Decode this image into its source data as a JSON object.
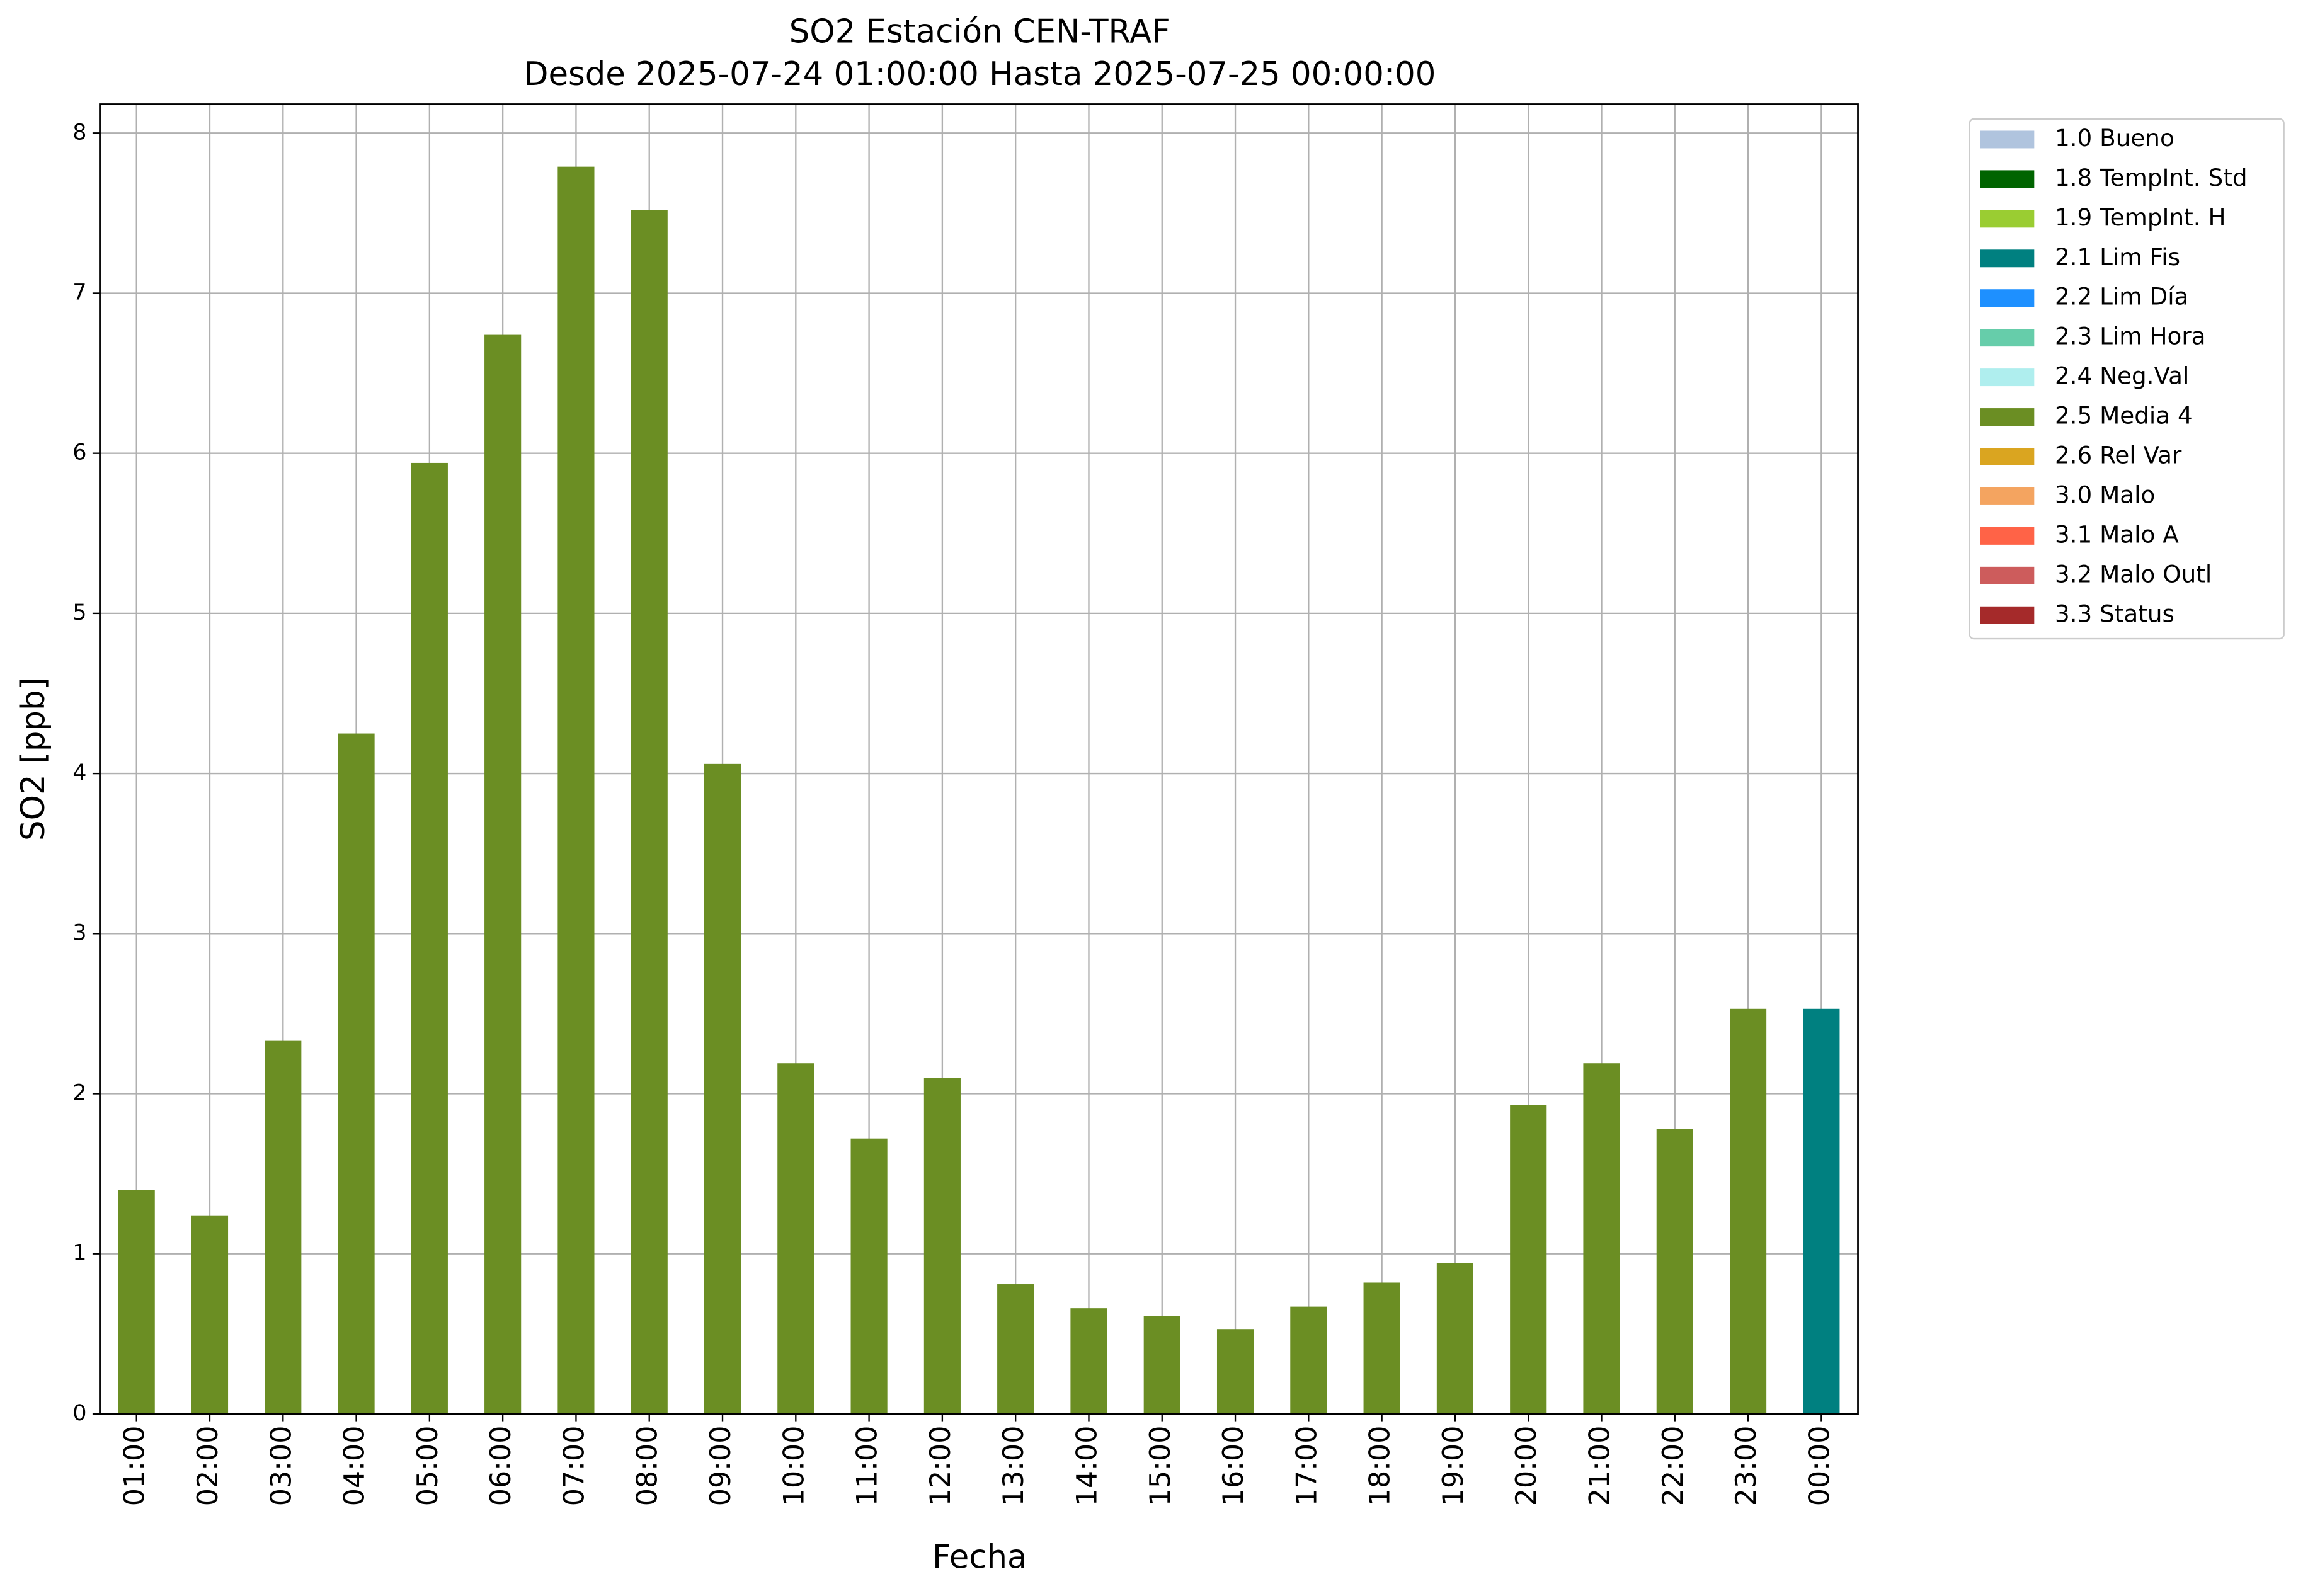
{
  "chart_data": {
    "type": "bar",
    "title": "SO2 Estación CEN-TRAF",
    "subtitle": "Desde 2025-07-24 01:00:00 Hasta 2025-07-25 00:00:00",
    "x_label": "Fecha",
    "y_label": "SO2 [ppb]",
    "categories": [
      "01:00",
      "02:00",
      "03:00",
      "04:00",
      "05:00",
      "06:00",
      "07:00",
      "08:00",
      "09:00",
      "10:00",
      "11:00",
      "12:00",
      "13:00",
      "14:00",
      "15:00",
      "16:00",
      "17:00",
      "18:00",
      "19:00",
      "20:00",
      "21:00",
      "22:00",
      "23:00",
      "00:00"
    ],
    "ylim": [
      0,
      8.18
    ],
    "yticks": [
      0,
      1,
      2,
      3,
      4,
      5,
      6,
      7,
      8
    ],
    "grid": true,
    "legend": "outside-right",
    "series": [
      {
        "name": "1.0 Bueno",
        "color": "#b0c4de",
        "values": [
          null,
          null,
          null,
          null,
          null,
          null,
          null,
          null,
          null,
          null,
          null,
          null,
          null,
          null,
          null,
          null,
          null,
          null,
          null,
          null,
          null,
          null,
          null,
          null
        ]
      },
      {
        "name": "1.8 TempInt. Std",
        "color": "#006400",
        "values": [
          null,
          null,
          null,
          null,
          null,
          null,
          null,
          null,
          null,
          null,
          null,
          null,
          null,
          null,
          null,
          null,
          null,
          null,
          null,
          null,
          null,
          null,
          null,
          null
        ]
      },
      {
        "name": "1.9 TempInt. H",
        "color": "#9acd32",
        "values": [
          null,
          null,
          null,
          null,
          null,
          null,
          null,
          null,
          null,
          null,
          null,
          null,
          null,
          null,
          null,
          null,
          null,
          null,
          null,
          null,
          null,
          null,
          null,
          null
        ]
      },
      {
        "name": "2.1 Lim Fis",
        "color": "#008080",
        "values": [
          null,
          null,
          null,
          null,
          null,
          null,
          null,
          null,
          null,
          null,
          null,
          null,
          null,
          null,
          null,
          null,
          null,
          null,
          null,
          null,
          null,
          null,
          null,
          2.53
        ]
      },
      {
        "name": "2.2 Lim Día",
        "color": "#1e90ff",
        "values": [
          null,
          null,
          null,
          null,
          null,
          null,
          null,
          null,
          null,
          null,
          null,
          null,
          null,
          null,
          null,
          null,
          null,
          null,
          null,
          null,
          null,
          null,
          null,
          null
        ]
      },
      {
        "name": "2.3 Lim Hora",
        "color": "#66cdaa",
        "values": [
          null,
          null,
          null,
          null,
          null,
          null,
          null,
          null,
          null,
          null,
          null,
          null,
          null,
          null,
          null,
          null,
          null,
          null,
          null,
          null,
          null,
          null,
          null,
          null
        ]
      },
      {
        "name": "2.4 Neg.Val",
        "color": "#afeeee",
        "values": [
          null,
          null,
          null,
          null,
          null,
          null,
          null,
          null,
          null,
          null,
          null,
          null,
          null,
          null,
          null,
          null,
          null,
          null,
          null,
          null,
          null,
          null,
          null,
          null
        ]
      },
      {
        "name": "2.5 Media 4",
        "color": "#6b8e23",
        "values": [
          1.4,
          1.24,
          2.33,
          4.25,
          5.94,
          6.74,
          7.79,
          7.52,
          4.06,
          2.19,
          1.72,
          2.1,
          0.81,
          0.66,
          0.61,
          0.53,
          0.67,
          0.82,
          0.94,
          1.93,
          2.19,
          1.78,
          2.53,
          null
        ]
      },
      {
        "name": "2.6 Rel Var",
        "color": "#daa520",
        "values": [
          null,
          null,
          null,
          null,
          null,
          null,
          null,
          null,
          null,
          null,
          null,
          null,
          null,
          null,
          null,
          null,
          null,
          null,
          null,
          null,
          null,
          null,
          null,
          null
        ]
      },
      {
        "name": "3.0 Malo",
        "color": "#f4a460",
        "values": [
          null,
          null,
          null,
          null,
          null,
          null,
          null,
          null,
          null,
          null,
          null,
          null,
          null,
          null,
          null,
          null,
          null,
          null,
          null,
          null,
          null,
          null,
          null,
          null
        ]
      },
      {
        "name": "3.1 Malo A",
        "color": "#ff6347",
        "values": [
          null,
          null,
          null,
          null,
          null,
          null,
          null,
          null,
          null,
          null,
          null,
          null,
          null,
          null,
          null,
          null,
          null,
          null,
          null,
          null,
          null,
          null,
          null,
          null
        ]
      },
      {
        "name": "3.2 Malo Outl",
        "color": "#cd5c5c",
        "values": [
          null,
          null,
          null,
          null,
          null,
          null,
          null,
          null,
          null,
          null,
          null,
          null,
          null,
          null,
          null,
          null,
          null,
          null,
          null,
          null,
          null,
          null,
          null,
          null
        ]
      },
      {
        "name": "3.3 Status",
        "color": "#a52a2a",
        "values": [
          null,
          null,
          null,
          null,
          null,
          null,
          null,
          null,
          null,
          null,
          null,
          null,
          null,
          null,
          null,
          null,
          null,
          null,
          null,
          null,
          null,
          null,
          null,
          null
        ]
      }
    ]
  }
}
